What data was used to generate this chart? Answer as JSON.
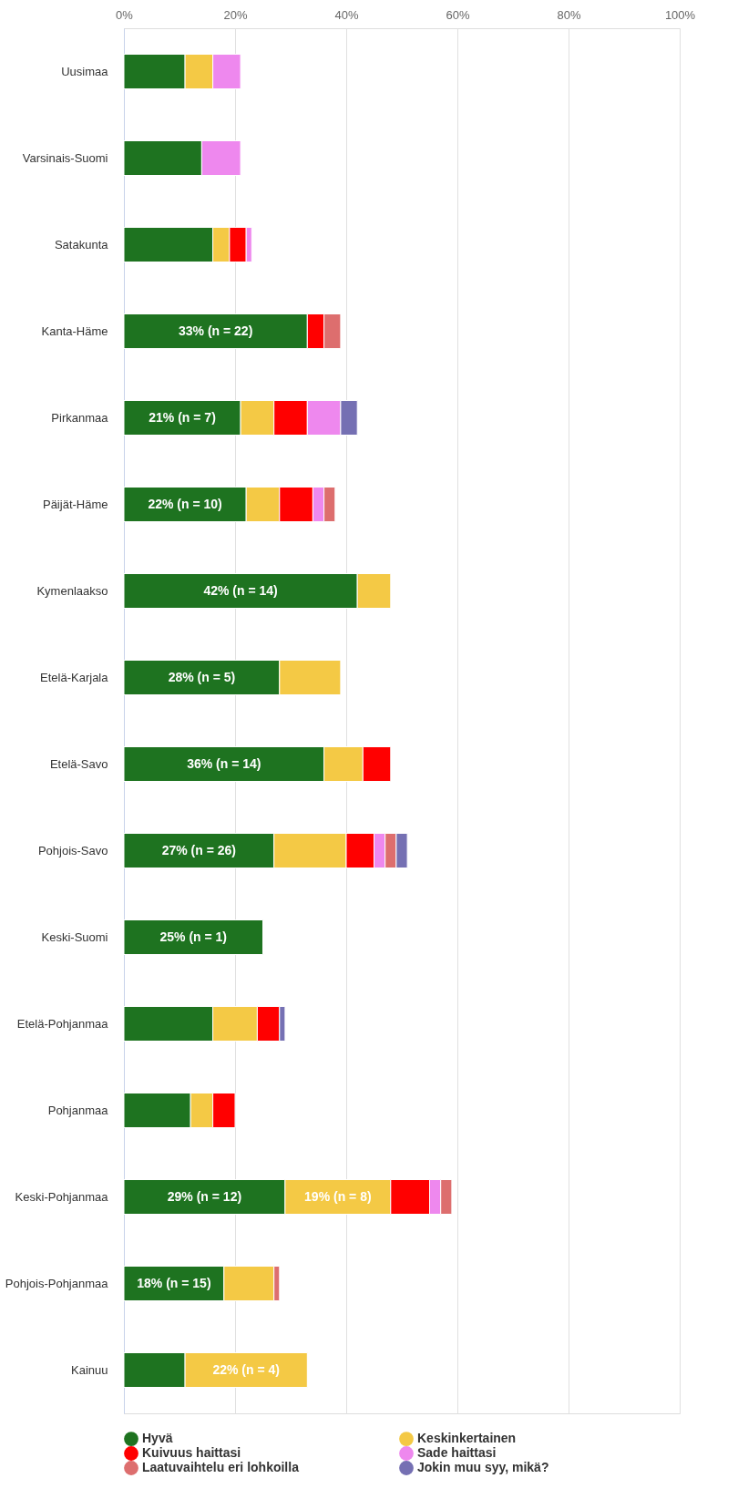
{
  "chart_data": {
    "type": "bar",
    "orientation": "horizontal",
    "stacked": true,
    "categories": [
      "Uusimaa",
      "Varsinais-Suomi",
      "Satakunta",
      "Kanta-Häme",
      "Pirkanmaa",
      "Päijät-Häme",
      "Kymenlaakso",
      "Etelä-Karjala",
      "Etelä-Savo",
      "Pohjois-Savo",
      "Keski-Suomi",
      "Etelä-Pohjanmaa",
      "Pohjanmaa",
      "Keski-Pohjanmaa",
      "Pohjois-Pohjanmaa",
      "Kainuu"
    ],
    "series": [
      {
        "name": "Hyvä",
        "color": "#1e7320",
        "values": [
          11,
          14,
          16,
          33,
          21,
          22,
          42,
          28,
          36,
          27,
          25,
          16,
          12,
          29,
          18,
          11
        ],
        "value_labels": [
          null,
          null,
          null,
          "33% (n = 22)",
          "21% (n = 7)",
          "22% (n = 10)",
          "42% (n = 14)",
          "28% (n = 5)",
          "36% (n = 14)",
          "27% (n = 26)",
          "25% (n = 1)",
          null,
          null,
          "29% (n = 12)",
          "18% (n = 15)",
          null
        ]
      },
      {
        "name": "Keskinkertainen",
        "color": "#f4c945",
        "values": [
          5,
          null,
          3,
          null,
          6,
          6,
          6,
          11,
          7,
          13,
          null,
          8,
          4,
          19,
          9,
          22
        ],
        "value_labels": [
          null,
          null,
          null,
          null,
          null,
          null,
          null,
          null,
          null,
          null,
          null,
          null,
          null,
          "19% (n = 8)",
          null,
          "22% (n = 4)"
        ]
      },
      {
        "name": "Kuivuus haittasi",
        "color": "#ff0000",
        "values": [
          null,
          null,
          3,
          3,
          6,
          6,
          null,
          null,
          5,
          5,
          null,
          4,
          4,
          7,
          null,
          null
        ]
      },
      {
        "name": "Sade haittasi",
        "color": "#ee88ee",
        "values": [
          5,
          7,
          1,
          null,
          6,
          2,
          null,
          null,
          null,
          2,
          null,
          null,
          null,
          2,
          null,
          null
        ]
      },
      {
        "name": "Laatuvaihtelu eri lohkoilla",
        "color": "#dd6e6e",
        "values": [
          null,
          null,
          null,
          3,
          null,
          2,
          null,
          null,
          null,
          2,
          null,
          null,
          null,
          2,
          1,
          null
        ]
      },
      {
        "name": "Jokin muu syy, mikä?",
        "color": "#7570b3",
        "values": [
          null,
          null,
          null,
          null,
          3,
          null,
          null,
          null,
          null,
          2,
          null,
          1,
          null,
          null,
          null,
          null
        ]
      }
    ],
    "xlim": [
      0,
      100
    ],
    "xticks": [
      {
        "value": 0,
        "label": "0%"
      },
      {
        "value": 20,
        "label": "20%"
      },
      {
        "value": 40,
        "label": "40%"
      },
      {
        "value": 60,
        "label": "60%"
      },
      {
        "value": 80,
        "label": "80%"
      },
      {
        "value": 100,
        "label": "100%"
      }
    ],
    "grid": "x",
    "legend": "bottom"
  }
}
